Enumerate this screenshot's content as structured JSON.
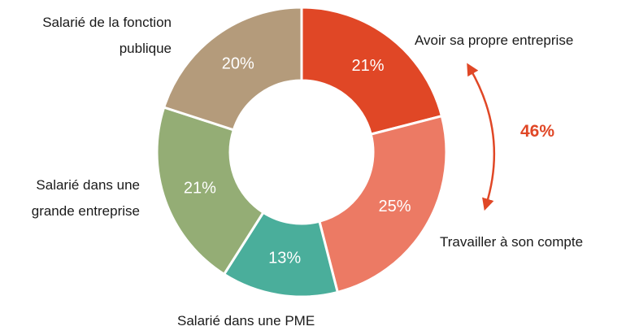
{
  "chart_data": {
    "type": "donut",
    "categories": [
      "Avoir sa propre entreprise",
      "Travailler à son compte",
      "Salarié dans une PME",
      "Salarié dans une grande entreprise",
      "Salarié de la fonction publique"
    ],
    "values": [
      21,
      25,
      13,
      21,
      20
    ],
    "value_labels": [
      "21%",
      "25%",
      "13%",
      "21%",
      "20%"
    ],
    "colors": [
      "#e04726",
      "#ec7a64",
      "#4aae9b",
      "#94ad75",
      "#b49b7b"
    ],
    "annotation": "46%"
  }
}
